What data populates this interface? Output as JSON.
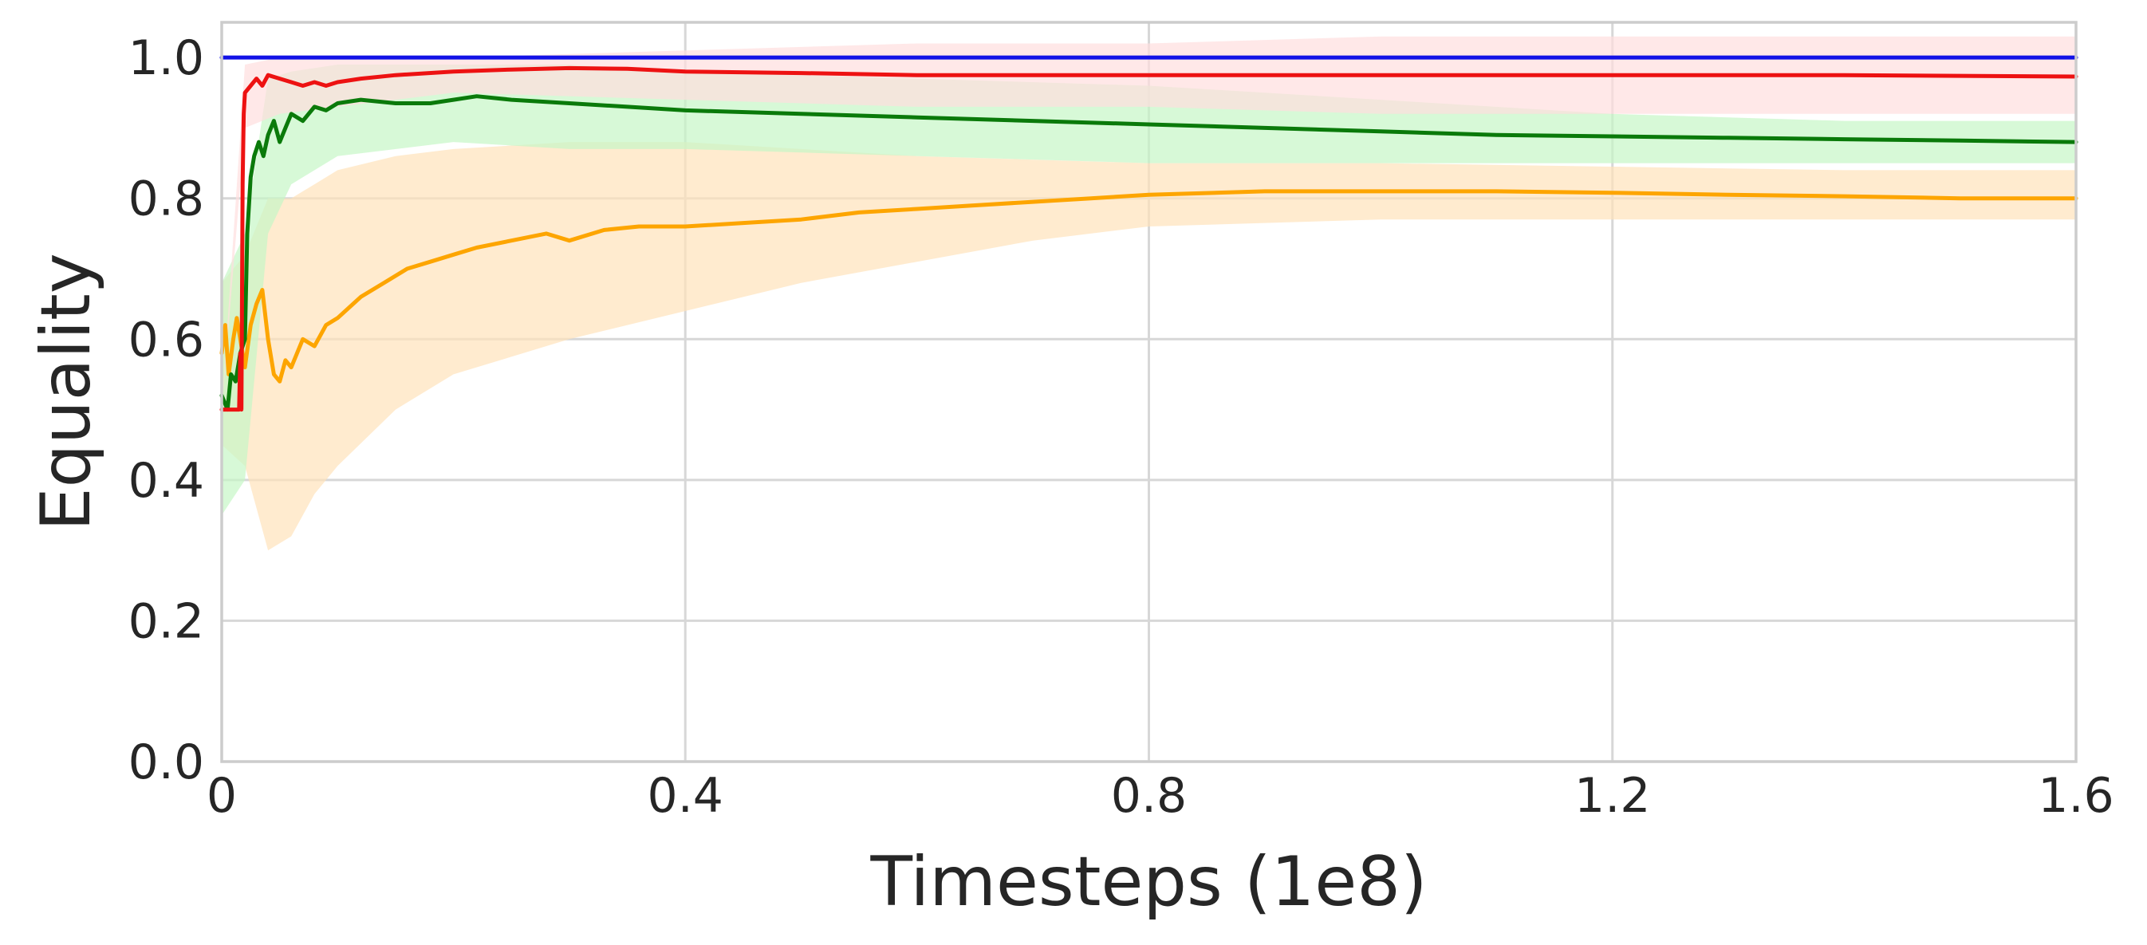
{
  "chart_data": {
    "type": "line",
    "title": "",
    "xlabel": "Timesteps (1e8)",
    "ylabel": "Equality",
    "xlim": [
      0,
      1.6
    ],
    "ylim": [
      0,
      1.05
    ],
    "grid": true,
    "legend": "none",
    "x_ticks": [
      {
        "value": 0,
        "label": "0"
      },
      {
        "value": 0.4,
        "label": "0.4"
      },
      {
        "value": 0.8,
        "label": "0.8"
      },
      {
        "value": 1.2,
        "label": "1.2"
      },
      {
        "value": 1.6,
        "label": "1.6"
      }
    ],
    "y_ticks": [
      {
        "value": 0.0,
        "label": "0.0"
      },
      {
        "value": 0.2,
        "label": "0.2"
      },
      {
        "value": 0.4,
        "label": "0.4"
      },
      {
        "value": 0.6,
        "label": "0.6"
      },
      {
        "value": 0.8,
        "label": "0.8"
      },
      {
        "value": 1.0,
        "label": "1.0"
      }
    ],
    "series": [
      {
        "color": "#fda500",
        "band_color": "#ffe3bb",
        "points": [
          [
            0,
            0.58
          ],
          [
            0.003,
            0.62
          ],
          [
            0.006,
            0.55
          ],
          [
            0.01,
            0.6
          ],
          [
            0.013,
            0.63
          ],
          [
            0.016,
            0.6
          ],
          [
            0.02,
            0.56
          ],
          [
            0.025,
            0.62
          ],
          [
            0.03,
            0.65
          ],
          [
            0.035,
            0.67
          ],
          [
            0.04,
            0.6
          ],
          [
            0.045,
            0.55
          ],
          [
            0.05,
            0.54
          ],
          [
            0.055,
            0.57
          ],
          [
            0.06,
            0.56
          ],
          [
            0.07,
            0.6
          ],
          [
            0.08,
            0.59
          ],
          [
            0.09,
            0.62
          ],
          [
            0.1,
            0.63
          ],
          [
            0.12,
            0.66
          ],
          [
            0.14,
            0.68
          ],
          [
            0.16,
            0.7
          ],
          [
            0.18,
            0.71
          ],
          [
            0.2,
            0.72
          ],
          [
            0.22,
            0.73
          ],
          [
            0.25,
            0.74
          ],
          [
            0.28,
            0.75
          ],
          [
            0.3,
            0.74
          ],
          [
            0.33,
            0.755
          ],
          [
            0.36,
            0.76
          ],
          [
            0.4,
            0.76
          ],
          [
            0.45,
            0.765
          ],
          [
            0.5,
            0.77
          ],
          [
            0.55,
            0.78
          ],
          [
            0.6,
            0.785
          ],
          [
            0.65,
            0.79
          ],
          [
            0.7,
            0.795
          ],
          [
            0.75,
            0.8
          ],
          [
            0.8,
            0.805
          ],
          [
            0.9,
            0.81
          ],
          [
            1.0,
            0.81
          ],
          [
            1.1,
            0.81
          ],
          [
            1.2,
            0.808
          ],
          [
            1.3,
            0.805
          ],
          [
            1.4,
            0.803
          ],
          [
            1.5,
            0.8
          ],
          [
            1.6,
            0.8
          ]
        ],
        "band": [
          [
            0,
            0.45,
            0.68
          ],
          [
            0.02,
            0.42,
            0.72
          ],
          [
            0.04,
            0.3,
            0.8
          ],
          [
            0.06,
            0.32,
            0.8
          ],
          [
            0.08,
            0.38,
            0.82
          ],
          [
            0.1,
            0.42,
            0.84
          ],
          [
            0.15,
            0.5,
            0.86
          ],
          [
            0.2,
            0.55,
            0.87
          ],
          [
            0.3,
            0.6,
            0.88
          ],
          [
            0.4,
            0.64,
            0.88
          ],
          [
            0.5,
            0.68,
            0.87
          ],
          [
            0.6,
            0.71,
            0.86
          ],
          [
            0.7,
            0.74,
            0.855
          ],
          [
            0.8,
            0.76,
            0.85
          ],
          [
            1.0,
            0.77,
            0.85
          ],
          [
            1.2,
            0.77,
            0.845
          ],
          [
            1.4,
            0.77,
            0.84
          ],
          [
            1.6,
            0.77,
            0.84
          ]
        ]
      },
      {
        "color": "#0a7a0a",
        "band_color": "#c6f7c6",
        "points": [
          [
            0,
            0.52
          ],
          [
            0.005,
            0.5
          ],
          [
            0.008,
            0.55
          ],
          [
            0.012,
            0.54
          ],
          [
            0.016,
            0.58
          ],
          [
            0.02,
            0.6
          ],
          [
            0.022,
            0.75
          ],
          [
            0.025,
            0.83
          ],
          [
            0.028,
            0.86
          ],
          [
            0.032,
            0.88
          ],
          [
            0.036,
            0.86
          ],
          [
            0.04,
            0.89
          ],
          [
            0.045,
            0.91
          ],
          [
            0.05,
            0.88
          ],
          [
            0.055,
            0.9
          ],
          [
            0.06,
            0.92
          ],
          [
            0.07,
            0.91
          ],
          [
            0.08,
            0.93
          ],
          [
            0.09,
            0.925
          ],
          [
            0.1,
            0.935
          ],
          [
            0.12,
            0.94
          ],
          [
            0.15,
            0.935
          ],
          [
            0.18,
            0.935
          ],
          [
            0.2,
            0.94
          ],
          [
            0.22,
            0.945
          ],
          [
            0.25,
            0.94
          ],
          [
            0.3,
            0.935
          ],
          [
            0.35,
            0.93
          ],
          [
            0.4,
            0.925
          ],
          [
            0.5,
            0.92
          ],
          [
            0.6,
            0.915
          ],
          [
            0.7,
            0.91
          ],
          [
            0.8,
            0.905
          ],
          [
            0.9,
            0.9
          ],
          [
            1.0,
            0.895
          ],
          [
            1.1,
            0.89
          ],
          [
            1.2,
            0.888
          ],
          [
            1.3,
            0.886
          ],
          [
            1.4,
            0.884
          ],
          [
            1.5,
            0.882
          ],
          [
            1.6,
            0.88
          ]
        ],
        "band": [
          [
            0,
            0.35,
            0.68
          ],
          [
            0.02,
            0.4,
            0.75
          ],
          [
            0.04,
            0.75,
            0.97
          ],
          [
            0.06,
            0.82,
            0.98
          ],
          [
            0.1,
            0.86,
            0.99
          ],
          [
            0.2,
            0.88,
            0.99
          ],
          [
            0.3,
            0.87,
            0.99
          ],
          [
            0.4,
            0.87,
            0.98
          ],
          [
            0.6,
            0.86,
            0.97
          ],
          [
            0.8,
            0.85,
            0.96
          ],
          [
            1.0,
            0.85,
            0.94
          ],
          [
            1.2,
            0.85,
            0.92
          ],
          [
            1.4,
            0.85,
            0.91
          ],
          [
            1.6,
            0.85,
            0.91
          ]
        ]
      },
      {
        "color": "#ed1212",
        "band_color": "#ffdede",
        "points": [
          [
            0,
            0.5
          ],
          [
            0.015,
            0.5
          ],
          [
            0.016,
            0.58
          ],
          [
            0.017,
            0.5
          ],
          [
            0.018,
            0.82
          ],
          [
            0.019,
            0.92
          ],
          [
            0.02,
            0.95
          ],
          [
            0.025,
            0.96
          ],
          [
            0.03,
            0.97
          ],
          [
            0.035,
            0.96
          ],
          [
            0.04,
            0.975
          ],
          [
            0.05,
            0.97
          ],
          [
            0.06,
            0.965
          ],
          [
            0.07,
            0.96
          ],
          [
            0.08,
            0.965
          ],
          [
            0.09,
            0.96
          ],
          [
            0.1,
            0.965
          ],
          [
            0.12,
            0.97
          ],
          [
            0.15,
            0.975
          ],
          [
            0.2,
            0.98
          ],
          [
            0.25,
            0.983
          ],
          [
            0.3,
            0.985
          ],
          [
            0.35,
            0.984
          ],
          [
            0.4,
            0.98
          ],
          [
            0.5,
            0.978
          ],
          [
            0.6,
            0.975
          ],
          [
            0.7,
            0.975
          ],
          [
            0.8,
            0.975
          ],
          [
            0.9,
            0.975
          ],
          [
            1.0,
            0.975
          ],
          [
            1.2,
            0.975
          ],
          [
            1.4,
            0.975
          ],
          [
            1.6,
            0.973
          ]
        ],
        "band": [
          [
            0,
            0.5,
            0.5
          ],
          [
            0.02,
            0.9,
            0.99
          ],
          [
            0.05,
            0.92,
            1.0
          ],
          [
            0.1,
            0.93,
            1.0
          ],
          [
            0.2,
            0.95,
            1.0
          ],
          [
            0.4,
            0.94,
            1.01
          ],
          [
            0.6,
            0.93,
            1.02
          ],
          [
            0.8,
            0.93,
            1.02
          ],
          [
            1.0,
            0.92,
            1.03
          ],
          [
            1.2,
            0.92,
            1.03
          ],
          [
            1.4,
            0.92,
            1.03
          ],
          [
            1.6,
            0.92,
            1.03
          ]
        ]
      },
      {
        "color": "#1212e6",
        "points": [
          [
            0,
            1.0
          ],
          [
            1.6,
            1.0
          ]
        ]
      }
    ]
  }
}
